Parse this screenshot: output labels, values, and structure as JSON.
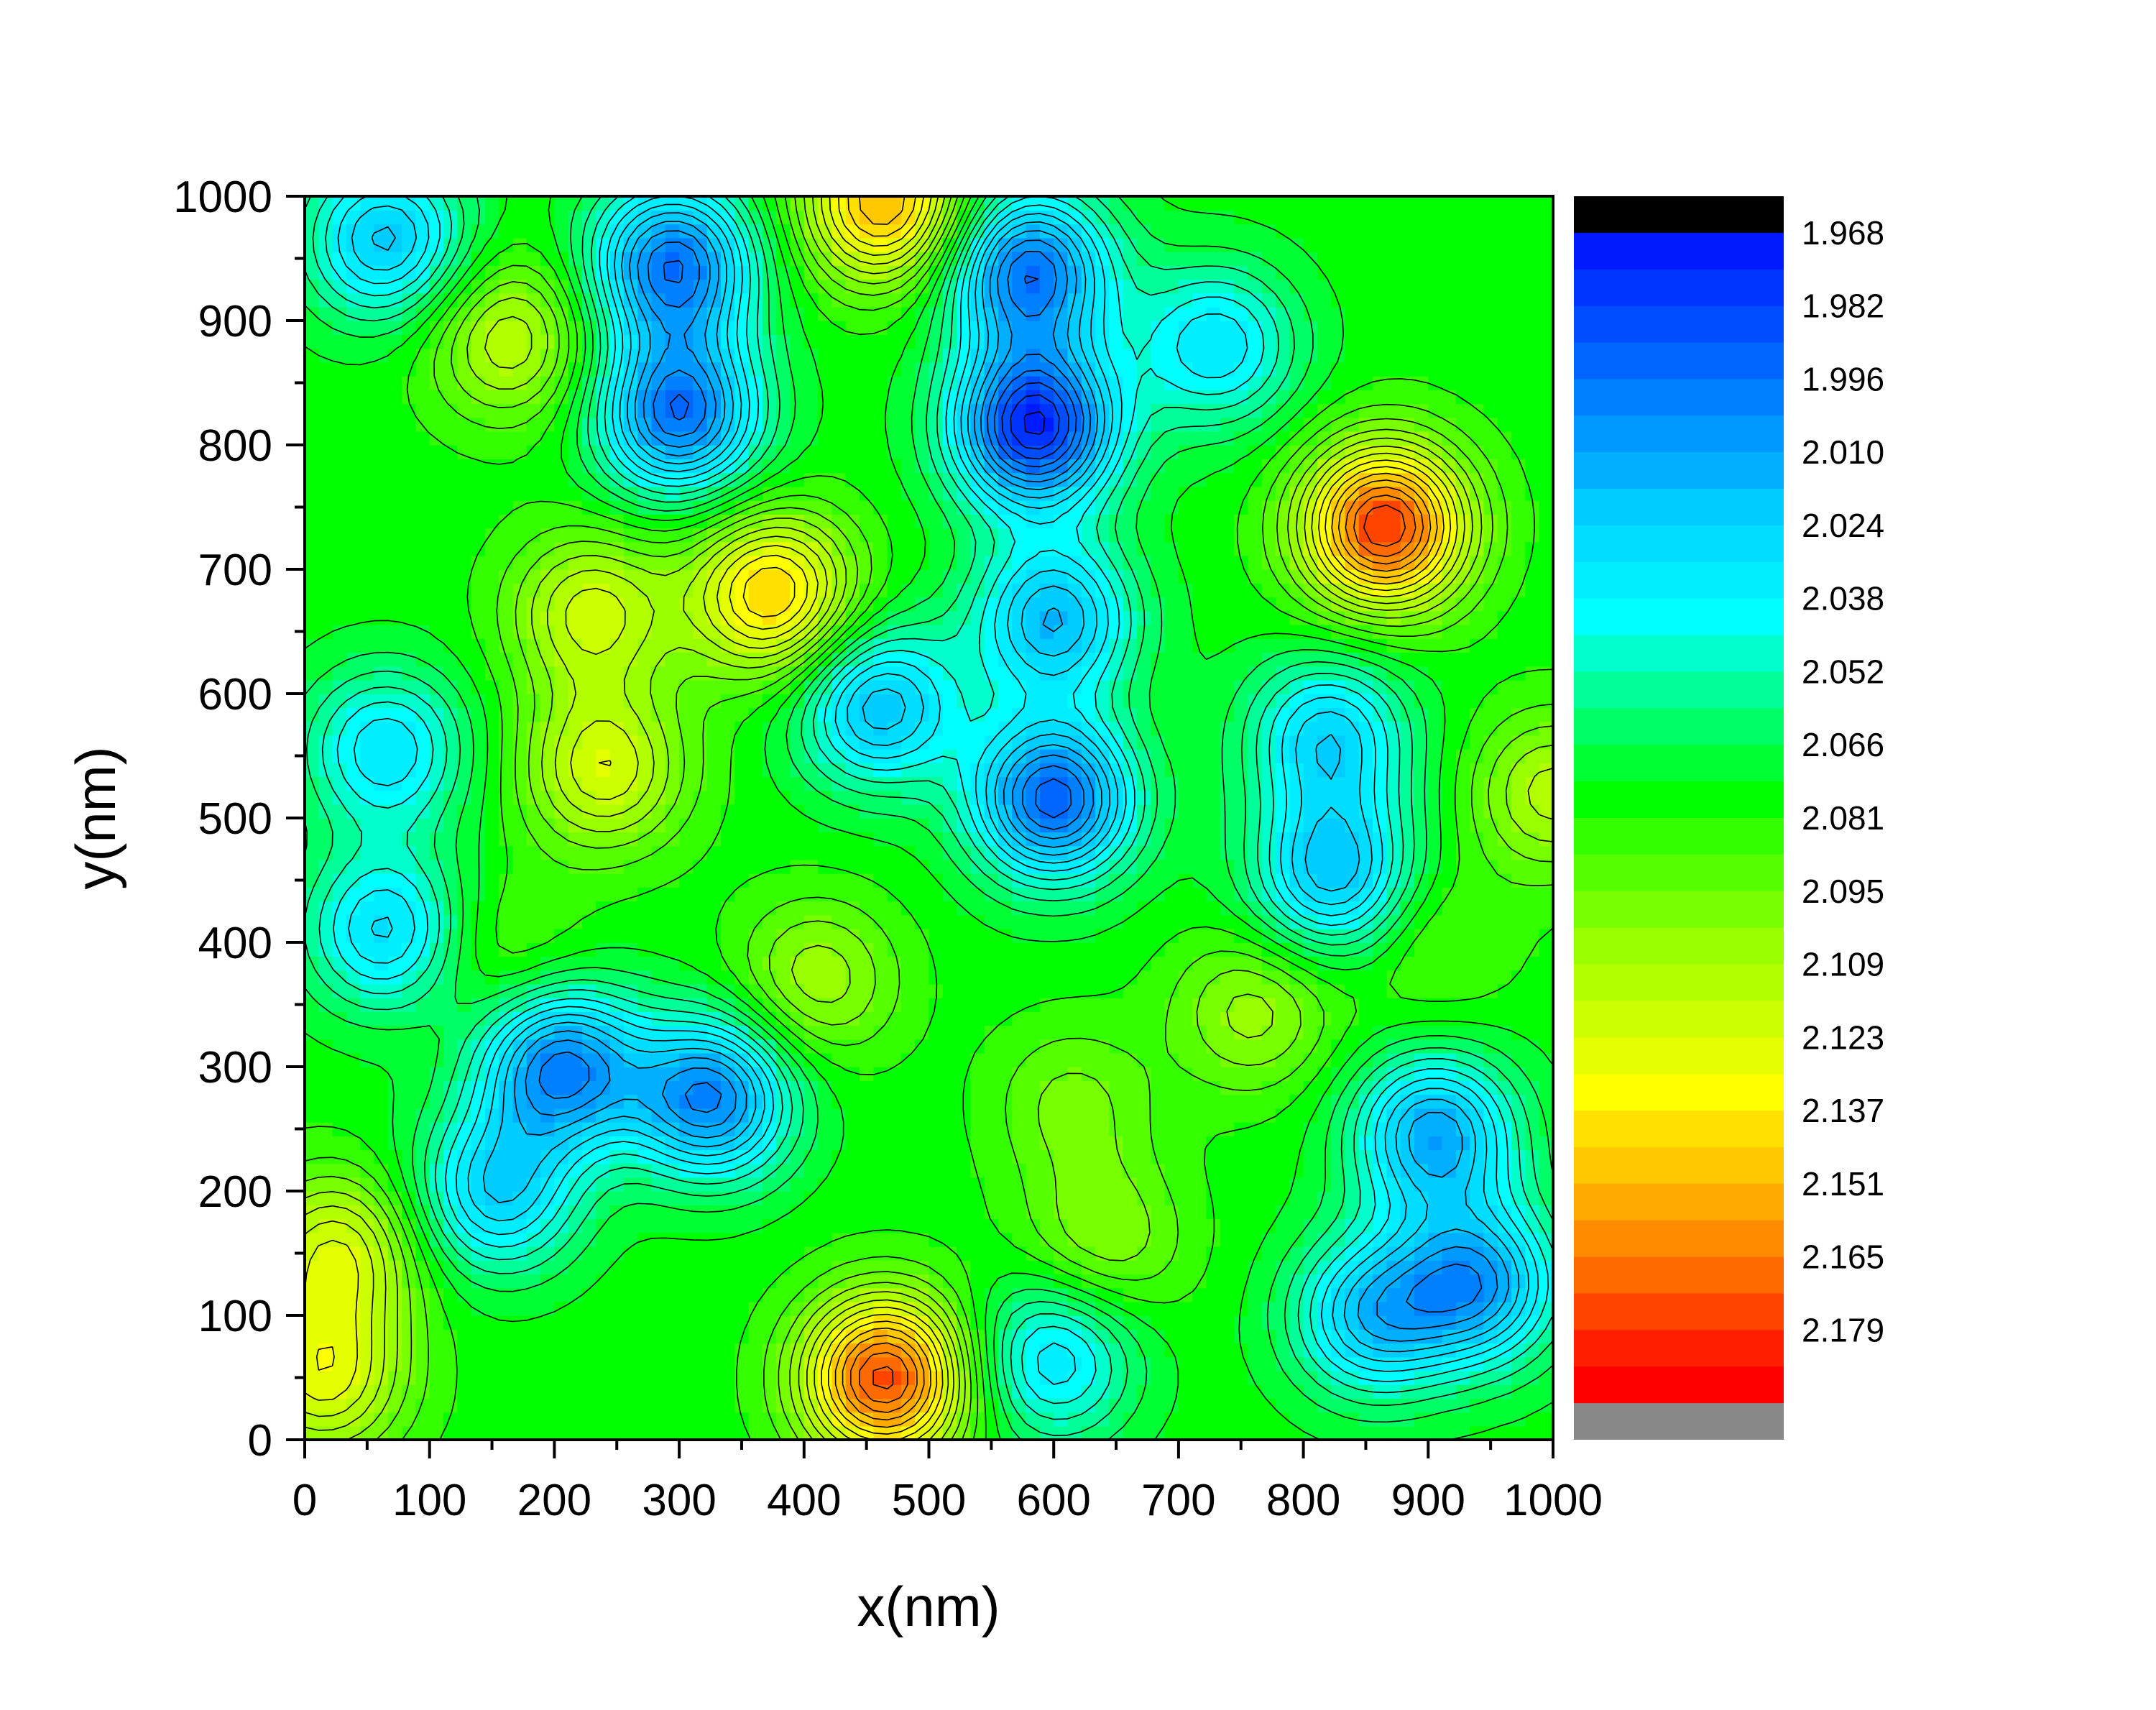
{
  "chart_data": {
    "type": "contour",
    "title": "",
    "xlabel": "x(nm)",
    "ylabel": "y(nm)",
    "xlim": [
      0,
      1000
    ],
    "ylim": [
      0,
      1000
    ],
    "x_ticks": [
      "0",
      "100",
      "200",
      "300",
      "400",
      "500",
      "600",
      "700",
      "800",
      "900",
      "1000"
    ],
    "y_ticks": [
      "0",
      "100",
      "200",
      "300",
      "400",
      "500",
      "600",
      "700",
      "800",
      "900",
      "1000"
    ],
    "colorbar": {
      "labels": [
        "1.968",
        "1.982",
        "1.996",
        "2.010",
        "2.024",
        "2.038",
        "2.052",
        "2.066",
        "2.081",
        "2.095",
        "2.109",
        "2.123",
        "2.137",
        "2.151",
        "2.165",
        "2.179"
      ],
      "min": 1.961,
      "max": 2.186,
      "levels": 32,
      "below_color": "#888888",
      "above_color": "#000000",
      "colors": [
        "#ff0000",
        "#ff1e00",
        "#ff4400",
        "#ff6a00",
        "#ff8c00",
        "#ffaa00",
        "#ffc800",
        "#ffe000",
        "#ffff00",
        "#e6ff00",
        "#ccff00",
        "#b2ff00",
        "#99ff00",
        "#77ff00",
        "#55ff00",
        "#33ff00",
        "#00ff00",
        "#00ff33",
        "#00ff66",
        "#00ff99",
        "#00ffcc",
        "#00ffff",
        "#00eeff",
        "#00ddff",
        "#00ccff",
        "#00b0ff",
        "#0099ff",
        "#0080ff",
        "#0066ff",
        "#004dff",
        "#0033ff",
        "#001aff"
      ]
    },
    "base_value": 2.07,
    "features": [
      {
        "x": 865,
        "y": 735,
        "value": 2.172
      },
      {
        "x": 465,
        "y": 50,
        "value": 2.168
      },
      {
        "x": 465,
        "y": 995,
        "value": 2.145
      },
      {
        "x": 375,
        "y": 680,
        "value": 2.138
      },
      {
        "x": 240,
        "y": 540,
        "value": 2.115
      },
      {
        "x": 230,
        "y": 665,
        "value": 2.112
      },
      {
        "x": 165,
        "y": 885,
        "value": 2.108
      },
      {
        "x": 25,
        "y": 150,
        "value": 2.115
      },
      {
        "x": 15,
        "y": 50,
        "value": 2.118
      },
      {
        "x": 1000,
        "y": 520,
        "value": 2.105
      },
      {
        "x": 410,
        "y": 370,
        "value": 2.1
      },
      {
        "x": 760,
        "y": 345,
        "value": 2.098
      },
      {
        "x": 640,
        "y": 160,
        "value": 2.095
      },
      {
        "x": 615,
        "y": 270,
        "value": 2.09
      },
      {
        "x": 585,
        "y": 815,
        "value": 1.968
      },
      {
        "x": 580,
        "y": 940,
        "value": 1.99
      },
      {
        "x": 600,
        "y": 515,
        "value": 1.985
      },
      {
        "x": 300,
        "y": 825,
        "value": 1.99
      },
      {
        "x": 295,
        "y": 945,
        "value": 1.99
      },
      {
        "x": 325,
        "y": 275,
        "value": 1.995
      },
      {
        "x": 205,
        "y": 300,
        "value": 1.995
      },
      {
        "x": 905,
        "y": 245,
        "value": 2.005
      },
      {
        "x": 940,
        "y": 125,
        "value": 2.005
      },
      {
        "x": 600,
        "y": 660,
        "value": 2.01
      },
      {
        "x": 460,
        "y": 590,
        "value": 2.012
      },
      {
        "x": 65,
        "y": 965,
        "value": 2.015
      },
      {
        "x": 825,
        "y": 455,
        "value": 2.012
      },
      {
        "x": 820,
        "y": 565,
        "value": 2.02
      },
      {
        "x": 855,
        "y": 100,
        "value": 2.015
      },
      {
        "x": 155,
        "y": 200,
        "value": 2.018
      },
      {
        "x": 65,
        "y": 410,
        "value": 2.022
      },
      {
        "x": 65,
        "y": 555,
        "value": 2.025
      },
      {
        "x": 730,
        "y": 880,
        "value": 2.025
      },
      {
        "x": 600,
        "y": 65,
        "value": 2.025
      },
      {
        "x": 900,
        "y": 400,
        "value": 2.085
      },
      {
        "x": 160,
        "y": 390,
        "value": 2.085
      }
    ]
  }
}
